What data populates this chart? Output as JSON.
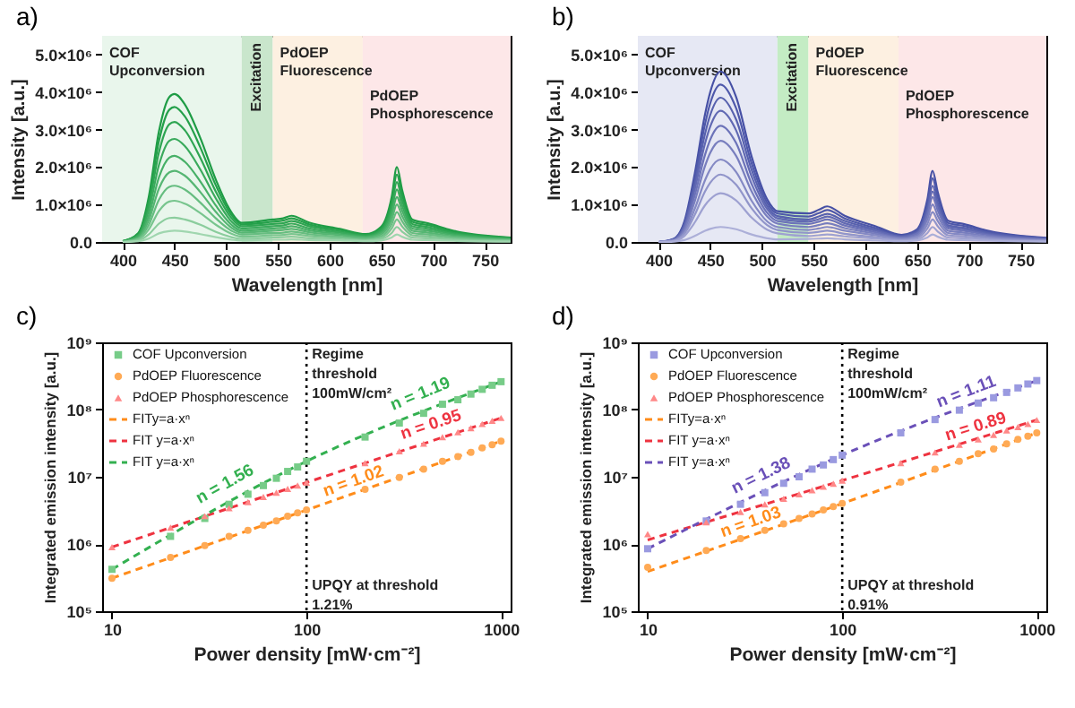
{
  "chart_data": [
    {
      "type": "line",
      "title": "a)",
      "xlabel": "Wavelength [nm]",
      "ylabel": "Intensity [a.u.]",
      "xlim": [
        380,
        775
      ],
      "xticks": [
        400,
        450,
        500,
        550,
        600,
        650,
        700,
        750
      ],
      "ylim": [
        0,
        5500000.0
      ],
      "yticks": [
        {
          "value": 0,
          "label": "0.0"
        },
        {
          "value": 1000000.0,
          "label": "1.0×10⁶"
        },
        {
          "value": 2000000.0,
          "label": "2.0×10⁶"
        },
        {
          "value": 3000000.0,
          "label": "3.0×10⁶"
        },
        {
          "value": 4000000.0,
          "label": "4.0×10⁶"
        },
        {
          "value": 5000000.0,
          "label": "5.0×10⁶"
        }
      ],
      "bands": [
        {
          "axis": "x",
          "from": 380,
          "to": 515,
          "label": "COF\nUpconversion",
          "color": "#e9f6ec"
        },
        {
          "axis": "x",
          "from": 515,
          "to": 545,
          "label": "Excitation",
          "color": "#c9e6cc"
        },
        {
          "axis": "x",
          "from": 545,
          "to": 632,
          "label": "PdOEP\nFluorescence",
          "color": "#fdf0e1"
        },
        {
          "axis": "x",
          "from": 632,
          "to": 775,
          "label": "PdOEP\nPhosphorescence",
          "color": "#fde7e8"
        }
      ],
      "x": [
        400,
        415,
        425,
        435,
        445,
        450,
        460,
        475,
        490,
        505,
        515,
        545,
        555,
        563,
        580,
        610,
        635,
        650,
        660,
        665,
        670,
        680,
        695,
        720,
        775
      ],
      "series": [
        {
          "color": "#1e9c45",
          "values": [
            20000.0,
            240000.0,
            1190000.0,
            2960000.0,
            3870000.0,
            3950000.0,
            3670000.0,
            2770000.0,
            1660000.0,
            790000.0,
            510000.0,
            600000.0,
            630000.0,
            700000.0,
            520000.0,
            350000.0,
            210000.0,
            410000.0,
            1200000.0,
            2000000.0,
            1400000.0,
            600000.0,
            500000.0,
            300000.0,
            120000.0
          ]
        },
        {
          "color": "#24a04a",
          "values": [
            20000.0,
            220000.0,
            1080000.0,
            2700000.0,
            3530000.0,
            3600000.0,
            3350000.0,
            2520000.0,
            1510000.0,
            720000.0,
            470000.0,
            540000.0,
            570000.0,
            630000.0,
            470000.0,
            320000.0,
            190000.0,
            370000.0,
            1080000.0,
            1800000.0,
            1260000.0,
            540000.0,
            450000.0,
            270000.0,
            110000.0
          ]
        },
        {
          "color": "#2ea552",
          "values": [
            20000.0,
            190000.0,
            960000.0,
            2400000.0,
            3140000.0,
            3200000.0,
            2980000.0,
            2240000.0,
            1340000.0,
            640000.0,
            420000.0,
            480000.0,
            500000.0,
            560000.0,
            420000.0,
            280000.0,
            170000.0,
            330000.0,
            960000.0,
            1600000.0,
            1120000.0,
            480000.0,
            400000.0,
            240000.0,
            100000.0
          ]
        },
        {
          "color": "#3aaa5c",
          "values": [
            10000.0,
            170000.0,
            830000.0,
            2060000.0,
            2700000.0,
            2750000.0,
            2560000.0,
            1930000.0,
            1160000.0,
            550000.0,
            360000.0,
            420000.0,
            440000.0,
            490000.0,
            360000.0,
            250000.0,
            150000.0,
            290000.0,
            840000.0,
            1400000.0,
            980000.0,
            420000.0,
            350000.0,
            210000.0,
            80000.0
          ]
        },
        {
          "color": "#47b067",
          "values": [
            10000.0,
            140000.0,
            690000.0,
            1730000.0,
            2250000.0,
            2300000.0,
            2140000.0,
            1610000.0,
            970000.0,
            460000.0,
            300000.0,
            360000.0,
            380000.0,
            420000.0,
            310000.0,
            210000.0,
            130000.0,
            250000.0,
            720000.0,
            1200000.0,
            840000.0,
            360000.0,
            300000.0,
            180000.0,
            70000.0
          ]
        },
        {
          "color": "#56b673",
          "values": [
            10000.0,
            110000.0,
            570000.0,
            1430000.0,
            1860000.0,
            1900000.0,
            1770000.0,
            1330000.0,
            800000.0,
            380000.0,
            250000.0,
            300000.0,
            320000.0,
            350000.0,
            260000.0,
            180000.0,
            110000.0,
            210000.0,
            600000.0,
            1000000.0,
            700000.0,
            300000.0,
            250000.0,
            150000.0,
            60000.0
          ]
        },
        {
          "color": "#66bd80",
          "values": [
            10000.0,
            90000.0,
            450000.0,
            1130000.0,
            1470000.0,
            1500000.0,
            1400000.0,
            1050000.0,
            630000.0,
            300000.0,
            200000.0,
            240000.0,
            250000.0,
            280000.0,
            210000.0,
            140000.0,
            80000.0,
            160000.0,
            480000.0,
            800000.0,
            560000.0,
            240000.0,
            200000.0,
            120000.0,
            50000.0
          ]
        },
        {
          "color": "#78c58e",
          "values": [
            10000.0,
            70000.0,
            330000.0,
            830000.0,
            1080000.0,
            1100000.0,
            1020000.0,
            770000.0,
            460000.0,
            220000.0,
            140000.0,
            180000.0,
            190000.0,
            210000.0,
            160000.0,
            110000.0,
            60000.0,
            120000.0,
            360000.0,
            600000.0,
            420000.0,
            180000.0,
            150000.0,
            90000.0,
            40000.0
          ]
        },
        {
          "color": "#8bcd9d",
          "values": [
            0,
            40000.0,
            200000.0,
            490000.0,
            640000.0,
            650000.0,
            600000.0,
            460000.0,
            270000.0,
            130000.0,
            80000.0,
            120000.0,
            130000.0,
            140000.0,
            100000.0,
            70000.0,
            40000.0,
            80000.0,
            240000.0,
            400000.0,
            280000.0,
            120000.0,
            100000.0,
            60000.0,
            20000.0
          ]
        },
        {
          "color": "#a0d6af",
          "values": [
            0,
            20000.0,
            90000.0,
            230000.0,
            290000.0,
            300000.0,
            280000.0,
            210000.0,
            130000.0,
            60000.0,
            40000.0,
            60000.0,
            60000.0,
            70000.0,
            50000.0,
            40000.0,
            20000.0,
            40000.0,
            120000.0,
            200000.0,
            140000.0,
            60000.0,
            50000.0,
            30000.0,
            10000.0
          ]
        }
      ]
    },
    {
      "type": "line",
      "title": "b)",
      "xlabel": "Wavelength [nm]",
      "ylabel": "Intensity [a.u.]",
      "xlim": [
        380,
        775
      ],
      "xticks": [
        400,
        450,
        500,
        550,
        600,
        650,
        700,
        750
      ],
      "ylim": [
        0,
        5500000.0
      ],
      "yticks": [
        {
          "value": 0,
          "label": "0.0"
        },
        {
          "value": 1000000.0,
          "label": "1.0×10⁶"
        },
        {
          "value": 2000000.0,
          "label": "2.0×10⁶"
        },
        {
          "value": 3000000.0,
          "label": "3.0×10⁶"
        },
        {
          "value": 4000000.0,
          "label": "4.0×10⁶"
        },
        {
          "value": 5000000.0,
          "label": "5.0×10⁶"
        }
      ],
      "bands": [
        {
          "axis": "x",
          "from": 380,
          "to": 515,
          "label": "COF\nUpconversion",
          "color": "#e6e8f4"
        },
        {
          "axis": "x",
          "from": 515,
          "to": 545,
          "label": "Excitation",
          "color": "#c4ecc4"
        },
        {
          "axis": "x",
          "from": 545,
          "to": 632,
          "label": "PdOEP\nFluorescence",
          "color": "#fdf0e1"
        },
        {
          "axis": "x",
          "from": 632,
          "to": 775,
          "label": "PdOEP\nPhosphorescence",
          "color": "#fde7e8"
        }
      ],
      "x": [
        400,
        415,
        425,
        435,
        445,
        450,
        460,
        475,
        490,
        505,
        515,
        545,
        555,
        563,
        580,
        610,
        635,
        650,
        660,
        665,
        670,
        680,
        695,
        720,
        775
      ],
      "series": [
        {
          "color": "#4650a5",
          "values": [
            0,
            90000.0,
            550000.0,
            1820000.0,
            3410000.0,
            4000000.0,
            4550000.0,
            3870000.0,
            2280000.0,
            1140000.0,
            820000.0,
            760000.0,
            860000.0,
            950000.0,
            700000.0,
            420000.0,
            190000.0,
            340000.0,
            1140000.0,
            1900000.0,
            1330000.0,
            570000.0,
            480000.0,
            290000.0,
            110000.0
          ]
        },
        {
          "color": "#4e58aa",
          "values": [
            0,
            80000.0,
            500000.0,
            1680000.0,
            3150000.0,
            3700000.0,
            4200000.0,
            3570000.0,
            2100000.0,
            1050000.0,
            760000.0,
            680000.0,
            770000.0,
            850000.0,
            630000.0,
            370000.0,
            170000.0,
            310000.0,
            1020000.0,
            1700000.0,
            1190000.0,
            510000.0,
            430000.0,
            260000.0,
            100000.0
          ]
        },
        {
          "color": "#5761ae",
          "values": [
            0,
            80000.0,
            460000.0,
            1540000.0,
            2890000.0,
            3390000.0,
            3850000.0,
            3270000.0,
            1930000.0,
            960000.0,
            690000.0,
            600000.0,
            680000.0,
            750000.0,
            560000.0,
            330000.0,
            150000.0,
            270000.0,
            900000.0,
            1500000.0,
            1050000.0,
            450000.0,
            380000.0,
            230000.0,
            90000.0
          ]
        },
        {
          "color": "#6169b3",
          "values": [
            0,
            70000.0,
            420000.0,
            1400000.0,
            2630000.0,
            3080000.0,
            3500000.0,
            2980000.0,
            1750000.0,
            880000.0,
            630000.0,
            540000.0,
            610000.0,
            680000.0,
            500000.0,
            300000.0,
            140000.0,
            240000.0,
            810000.0,
            1350000.0,
            950000.0,
            410000.0,
            340000.0,
            200000.0,
            80000.0
          ]
        },
        {
          "color": "#6c73b9",
          "values": [
            0,
            60000.0,
            370000.0,
            1240000.0,
            2330000.0,
            2730000.0,
            3100000.0,
            2640000.0,
            1550000.0,
            780000.0,
            560000.0,
            480000.0,
            540000.0,
            600000.0,
            440000.0,
            260000.0,
            120000.0,
            220000.0,
            720000.0,
            1200000.0,
            840000.0,
            360000.0,
            300000.0,
            180000.0,
            70000.0
          ]
        },
        {
          "color": "#787ebe",
          "values": [
            0,
            50000.0,
            320000.0,
            1080000.0,
            2030000.0,
            2380000.0,
            2700000.0,
            2300000.0,
            1350000.0,
            680000.0,
            490000.0,
            400000.0,
            450000.0,
            500000.0,
            370000.0,
            220000.0,
            100000.0,
            180000.0,
            600000.0,
            1000000.0,
            700000.0,
            300000.0,
            250000.0,
            150000.0,
            60000.0
          ]
        },
        {
          "color": "#8489c4",
          "values": [
            0,
            40000.0,
            260000.0,
            880000.0,
            1650000.0,
            1940000.0,
            2200000.0,
            1870000.0,
            1100000.0,
            550000.0,
            400000.0,
            320000.0,
            360000.0,
            400000.0,
            300000.0,
            180000.0,
            80000.0,
            140000.0,
            480000.0,
            800000.0,
            560000.0,
            240000.0,
            200000.0,
            120000.0,
            50000.0
          ]
        },
        {
          "color": "#9195ca",
          "values": [
            0,
            40000.0,
            220000.0,
            720000.0,
            1350000.0,
            1580000.0,
            1800000.0,
            1530000.0,
            900000.0,
            450000.0,
            320000.0,
            240000.0,
            270000.0,
            300000.0,
            220000.0,
            130000.0,
            60000.0,
            110000.0,
            360000.0,
            600000.0,
            420000.0,
            180000.0,
            150000.0,
            90000.0,
            40000.0
          ]
        },
        {
          "color": "#9ea1d1",
          "values": [
            0,
            30000.0,
            160000.0,
            520000.0,
            980000.0,
            1140000.0,
            1300000.0,
            1110000.0,
            650000.0,
            330000.0,
            230000.0,
            160000.0,
            180000.0,
            200000.0,
            150000.0,
            90000.0,
            40000.0,
            70000.0,
            240000.0,
            400000.0,
            280000.0,
            120000.0,
            100000.0,
            60000.0,
            20000.0
          ]
        },
        {
          "color": "#acafd8",
          "values": [
            0,
            10000.0,
            50000.0,
            160000.0,
            300000.0,
            350000.0,
            400000.0,
            340000.0,
            200000.0,
            100000.0,
            70000.0,
            80000.0,
            90000.0,
            100000.0,
            70000.0,
            40000.0,
            20000.0,
            40000.0,
            120000.0,
            200000.0,
            140000.0,
            60000.0,
            50000.0,
            30000.0,
            10000.0
          ]
        }
      ]
    },
    {
      "type": "scatter",
      "title": "c)",
      "xlabel": "Power density [mW·cm⁻²]",
      "ylabel": "Integrated emission intensity [a.u.]",
      "log": "xy",
      "xlim": [
        8.9,
        1120
      ],
      "xticks": [
        10,
        100,
        1000
      ],
      "ylim": [
        100000.0,
        1000000000.0
      ],
      "yticks": [
        {
          "value": 100000.0,
          "label": "10⁵"
        },
        {
          "value": 1000000.0,
          "label": "10⁶"
        },
        {
          "value": 10000000.0,
          "label": "10⁷"
        },
        {
          "value": 100000000.0,
          "label": "10⁸"
        },
        {
          "value": 1000000000.0,
          "label": "10⁹"
        }
      ],
      "legend": "top left",
      "x": [
        10,
        20,
        30,
        40,
        50,
        60,
        70,
        80,
        90,
        100,
        200,
        300,
        400,
        500,
        600,
        700,
        800,
        900,
        1000
      ],
      "series": [
        {
          "name": "COF Upconversion",
          "type": "scatter",
          "marker": "square",
          "color": "#77cc88",
          "values": [
            420000.0,
            1300000.0,
            2400000.0,
            3900000.0,
            5500000.0,
            7400000.0,
            9500000.0,
            12000000.0,
            14000000.0,
            17000000.0,
            39000000.0,
            63000000.0,
            88000000.0,
            120000000.0,
            140000000.0,
            170000000.0,
            200000000.0,
            230000000.0,
            260000000.0
          ]
        },
        {
          "name": "PdOEP Fluorescence",
          "type": "scatter",
          "marker": "circle",
          "color": "#ffaa55",
          "values": [
            310000.0,
            630000.0,
            950000.0,
            1300000.0,
            1600000.0,
            1900000.0,
            2200000.0,
            2600000.0,
            2900000.0,
            3200000.0,
            6500000.0,
            9800000.0,
            13000000.0,
            17000000.0,
            20000000.0,
            23000000.0,
            27000000.0,
            30000000.0,
            34000000.0
          ]
        },
        {
          "name": "PdOEP Phosphorescence",
          "type": "scatter",
          "marker": "triangle",
          "color": "#ff8888",
          "values": [
            900000.0,
            1750000.0,
            2600000.0,
            3400000.0,
            4200000.0,
            5000000.0,
            5800000.0,
            6600000.0,
            7400000.0,
            8200000.0,
            16000000.0,
            24000000.0,
            31000000.0,
            39000000.0,
            46000000.0,
            53000000.0,
            61000000.0,
            68000000.0,
            75000000.0
          ]
        },
        {
          "name": "FITy=a·xⁿ",
          "type": "line",
          "line_style": "dashed",
          "color": "#ff8c1a",
          "x": [
            10,
            100,
            1000
          ],
          "values": [
            310000.0,
            3200000.0,
            34000000.0
          ]
        },
        {
          "name": "FIT y=a·xⁿ",
          "type": "line",
          "line_style": "dashed",
          "color": "#ee3340",
          "x": [
            10,
            1000
          ],
          "values": [
            900000.0,
            75000000.0
          ]
        },
        {
          "name": "FIT y=a·xⁿ",
          "type": "line",
          "line_style": "dashed",
          "color": "#33b050",
          "x": [
            10,
            100,
            1000
          ],
          "values": [
            420000.0,
            17000000.0,
            260000000.0
          ]
        }
      ],
      "ref_lines": [
        {
          "axis": "x",
          "value": 100,
          "label": "Regime\nthreshold\n100mW/cm²",
          "line_style": "dotted",
          "color": "#000000"
        }
      ],
      "annotations": [
        {
          "text": "n = 1.56",
          "x": 40,
          "y": 6000000.0
        },
        {
          "text": "n = 1.19",
          "x": 400,
          "y": 130000000.0
        },
        {
          "text": "n = 0.95",
          "x": 450,
          "y": 45000000.0
        },
        {
          "text": "n = 1.02",
          "x": 180,
          "y": 6500000.0
        },
        {
          "text": "UPQY at threshold\n1.21%",
          "x": 100,
          "y": 300000.0
        }
      ]
    },
    {
      "type": "scatter",
      "title": "d)",
      "xlabel": "Power density [mW·cm⁻²]",
      "ylabel": "Integrated emission intensity [a.u.]",
      "log": "xy",
      "xlim": [
        8.9,
        1120
      ],
      "xticks": [
        10,
        100,
        1000
      ],
      "ylim": [
        100000.0,
        1000000000.0
      ],
      "yticks": [
        {
          "value": 100000.0,
          "label": "10⁵"
        },
        {
          "value": 1000000.0,
          "label": "10⁶"
        },
        {
          "value": 10000000.0,
          "label": "10⁷"
        },
        {
          "value": 100000000.0,
          "label": "10⁸"
        },
        {
          "value": 1000000000.0,
          "label": "10⁹"
        }
      ],
      "legend": "top left",
      "x": [
        10,
        20,
        30,
        40,
        50,
        60,
        70,
        80,
        90,
        100,
        200,
        300,
        400,
        500,
        600,
        700,
        800,
        900,
        1000
      ],
      "series": [
        {
          "name": "COF Upconversion",
          "type": "scatter",
          "marker": "square",
          "color": "#9a9ae0",
          "values": [
            850000.0,
            2200000.0,
            3900000.0,
            5800000.0,
            8000000.0,
            10000000.0,
            13000000.0,
            15000000.0,
            18000000.0,
            21000000.0,
            45000000.0,
            71000000.0,
            98000000.0,
            125000000.0,
            150000000.0,
            180000000.0,
            210000000.0,
            240000000.0,
            270000000.0
          ]
        },
        {
          "name": "PdOEP Fluorescence",
          "type": "scatter",
          "marker": "circle",
          "color": "#ffaa55",
          "values": [
            450000.0,
            800000.0,
            1200000.0,
            1600000.0,
            2000000.0,
            2400000.0,
            2800000.0,
            3200000.0,
            3600000.0,
            4000000.0,
            8300000.0,
            13000000.0,
            17000000.0,
            22000000.0,
            26000000.0,
            31000000.0,
            36000000.0,
            40000000.0,
            45000000.0
          ]
        },
        {
          "name": "PdOEP Phosphorescence",
          "type": "scatter",
          "marker": "triangle",
          "color": "#ff8888",
          "values": [
            1400000.0,
            2100000.0,
            3000000.0,
            3900000.0,
            4700000.0,
            5500000.0,
            6300000.0,
            7100000.0,
            7900000.0,
            8800000.0,
            16000000.0,
            23000000.0,
            30000000.0,
            36000000.0,
            42000000.0,
            49000000.0,
            55000000.0,
            61000000.0,
            70000000.0
          ]
        },
        {
          "name": "FITy=a·xⁿ",
          "type": "line",
          "line_style": "dashed",
          "color": "#ff8c1a",
          "x": [
            10,
            100,
            1000
          ],
          "values": [
            390000.0,
            4000000.0,
            45000000.0
          ]
        },
        {
          "name": "FIT y=a·xⁿ",
          "type": "line",
          "line_style": "dashed",
          "color": "#ee3340",
          "x": [
            10,
            100,
            1000
          ],
          "values": [
            1150000.0,
            8800000.0,
            70000000.0
          ]
        },
        {
          "name": "FIT y=a·xⁿ",
          "type": "line",
          "line_style": "dashed",
          "color": "#6a50b8",
          "x": [
            10,
            100,
            1000
          ],
          "values": [
            850000.0,
            21000000.0,
            270000000.0
          ]
        }
      ],
      "ref_lines": [
        {
          "axis": "x",
          "value": 100,
          "label": "Regime\nthreshold\n100mW/cm²",
          "line_style": "dotted",
          "color": "#000000"
        }
      ],
      "annotations": [
        {
          "text": "n = 1.38",
          "x": 40,
          "y": 8000000.0
        },
        {
          "text": "n = 1.11",
          "x": 450,
          "y": 140000000.0
        },
        {
          "text": "n = 0.89",
          "x": 500,
          "y": 42000000.0
        },
        {
          "text": "n = 1.03",
          "x": 35,
          "y": 1600000.0
        },
        {
          "text": "UPQY at threshold\n0.91%",
          "x": 100,
          "y": 300000.0
        }
      ]
    }
  ]
}
